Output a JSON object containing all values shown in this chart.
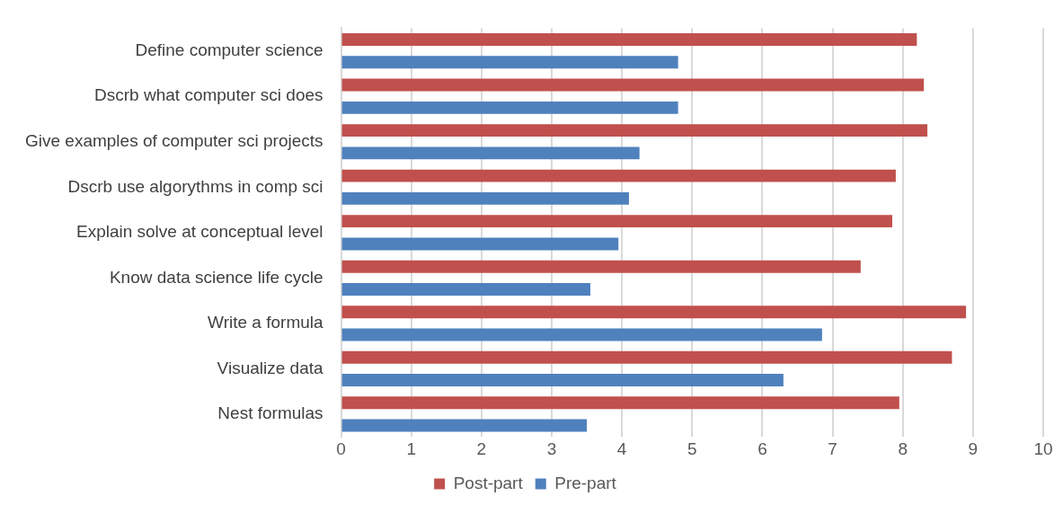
{
  "chart_data": {
    "type": "bar",
    "orientation": "horizontal",
    "categories": [
      "Define computer science",
      "Dscrb what computer sci does",
      "Give examples of computer sci projects",
      "Dscrb use algorythms in comp sci",
      "Explain solve at conceptual level",
      "Know data science life cycle",
      "Write a formula",
      "Visualize data",
      "Nest formulas"
    ],
    "series": [
      {
        "name": "Post-part",
        "color": "#c0504d",
        "values": [
          8.2,
          8.3,
          8.35,
          7.9,
          7.85,
          7.4,
          8.9,
          8.7,
          7.95
        ]
      },
      {
        "name": "Pre-part",
        "color": "#4f81bd",
        "values": [
          4.8,
          4.8,
          4.25,
          4.1,
          3.95,
          3.55,
          6.85,
          6.3,
          3.5
        ]
      }
    ],
    "xlim": [
      0,
      10
    ],
    "xticks": [
      0,
      1,
      2,
      3,
      4,
      5,
      6,
      7,
      8,
      9,
      10
    ],
    "grid": "x",
    "legend": "bottom"
  }
}
